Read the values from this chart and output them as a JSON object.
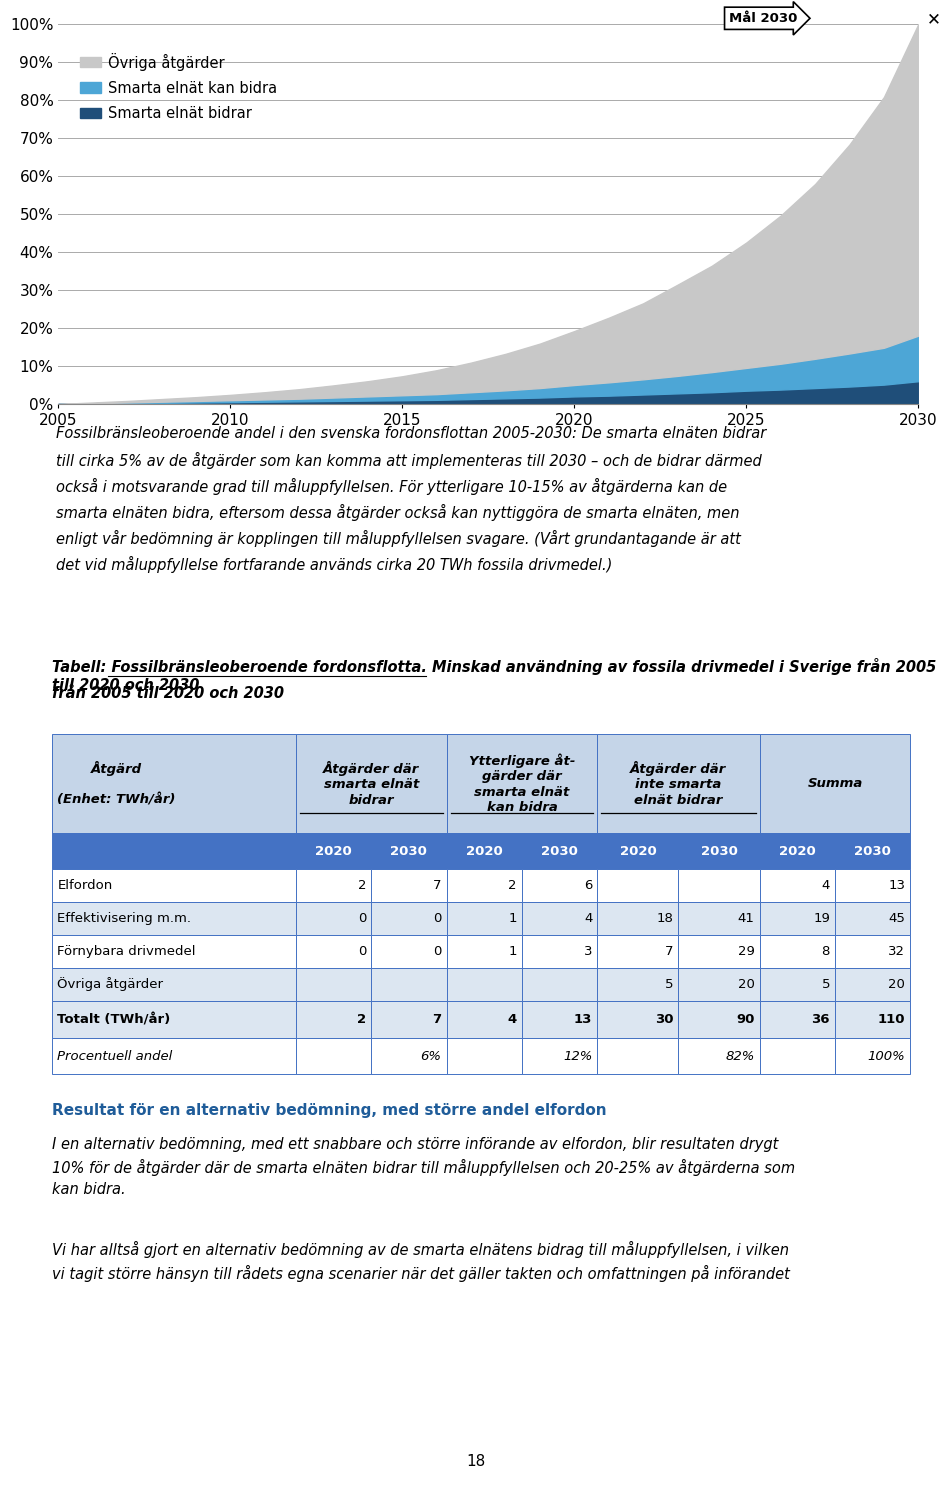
{
  "chart": {
    "years": [
      2005,
      2006,
      2007,
      2008,
      2009,
      2010,
      2011,
      2012,
      2013,
      2014,
      2015,
      2016,
      2017,
      2018,
      2019,
      2020,
      2021,
      2022,
      2023,
      2024,
      2025,
      2026,
      2027,
      2028,
      2029,
      2030
    ],
    "smarta_bidrar": [
      0.0,
      0.001,
      0.002,
      0.003,
      0.004,
      0.005,
      0.006,
      0.007,
      0.008,
      0.009,
      0.01,
      0.011,
      0.013,
      0.015,
      0.017,
      0.02,
      0.022,
      0.025,
      0.028,
      0.031,
      0.035,
      0.038,
      0.042,
      0.046,
      0.051,
      0.06
    ],
    "smarta_kan_bidra": [
      0.0,
      0.001,
      0.002,
      0.003,
      0.004,
      0.005,
      0.006,
      0.007,
      0.009,
      0.011,
      0.013,
      0.015,
      0.018,
      0.021,
      0.025,
      0.03,
      0.035,
      0.04,
      0.046,
      0.053,
      0.06,
      0.068,
      0.077,
      0.087,
      0.097,
      0.12
    ],
    "ovriga": [
      0.0,
      0.002,
      0.004,
      0.007,
      0.01,
      0.014,
      0.019,
      0.025,
      0.032,
      0.04,
      0.05,
      0.063,
      0.078,
      0.096,
      0.117,
      0.142,
      0.17,
      0.2,
      0.24,
      0.28,
      0.33,
      0.39,
      0.46,
      0.55,
      0.66,
      0.82
    ],
    "color_smarta_bidrar": "#1f4e79",
    "color_smarta_kan_bidra": "#4da6d6",
    "color_ovriga": "#c8c8c8",
    "yticks": [
      0.0,
      0.1,
      0.2,
      0.3,
      0.4,
      0.5,
      0.6,
      0.7,
      0.8,
      0.9,
      1.0
    ],
    "ytick_labels": [
      "0%",
      "10%",
      "20%",
      "30%",
      "40%",
      "50%",
      "60%",
      "70%",
      "80%",
      "90%",
      "100%"
    ],
    "xticks": [
      2005,
      2010,
      2015,
      2020,
      2025,
      2030
    ],
    "legend_ovriga": "Övriga åtgärder",
    "legend_kan_bidra": "Smarta elnät kan bidra",
    "legend_bidrar": "Smarta elnät bidrar",
    "mal_label": "Mål 2030"
  },
  "caption_title": "Fossilbränsleoberoende andel i den svenska fordonsflottan 2005-2030:",
  "caption_body": " De smarta elnäten bidrar till cirka 5% av de åtgärder som kan komma att implementeras till 2030 – och de bidrar därmed också i motsvarande grad till måluppfyllelsen. För ytterligare 10-15% av åtgärderna kan de smarta elnäten bidra, eftersom dessa åtgärder också kan nyttiggöra de smarta elnäten, men enligt vår bedömning är kopplingen till måluppfyllelsen svagare. (Vårt grundantagande är att det vid måluppfyllelse fortfarande används cirka 20 TWh fossila drivmedel.)",
  "table_title_bold": "Tabell: Fossilbränsleoberoende fordonsflotta.",
  "table_title_rest": " Minskad användning av fossila drivmedel i Sverige från 2005 till 2020 och 2030",
  "result_title": "Resultat för en alternativ bedömning, med större andel elfordon",
  "result_title_color": "#1f5c99",
  "result_text1": "I en alternativ bedömning, med ett snabbare och större införande av elfordon, blir resultaten drygt\n10% för de åtgärder där de smarta elnäten bidrar till måluppfyllelsen och 20-25% av åtgärderna som\nkan bidra.",
  "result_text2": "Vi har alltså gjort en alternativ bedömning av de smarta elnätens bidrag till måluppfyllelsen, i vilken\nvi tagit större hänsyn till rådets egna scenarier när det gäller takten och omfattningen på införandet",
  "page_number": "18",
  "bg": "#ffffff",
  "header_bg": "#c5d5e8",
  "year_row_bg": "#4472c4",
  "year_row_fg": "#ffffff",
  "data_bg1": "#ffffff",
  "data_bg2": "#dce6f1",
  "table_border": "#4472c4"
}
